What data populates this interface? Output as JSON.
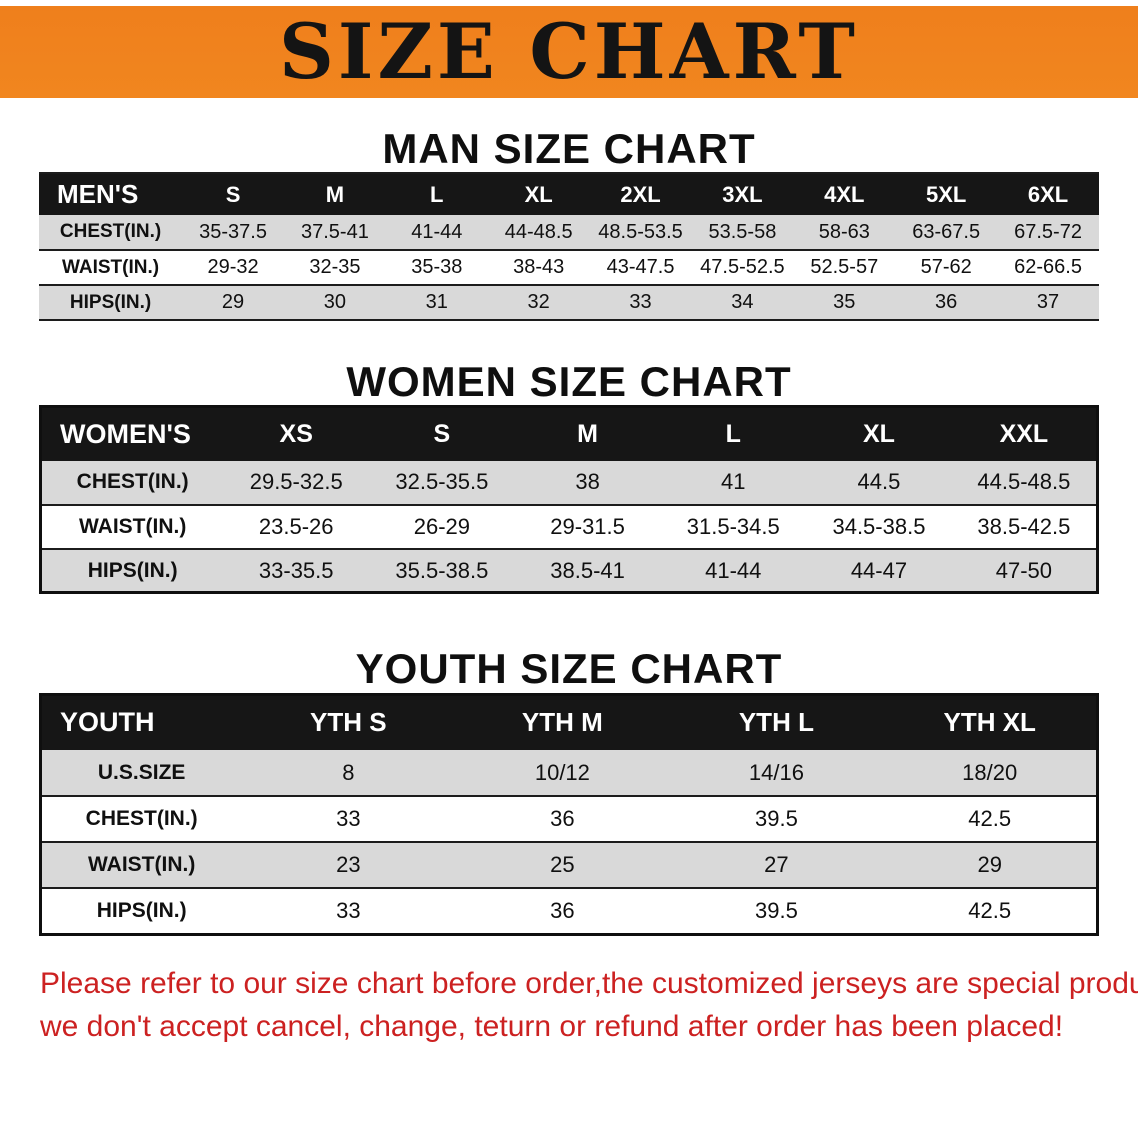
{
  "banner": {
    "title": "SIZE CHART"
  },
  "colors": {
    "banner_orange": "#F0821E",
    "header_black": "#161616",
    "row_gray": "#D9D9D9",
    "note_red": "#CC2121"
  },
  "footnote": {
    "line1": "Please refer to our size chart before order,the customized jerseys are special products,",
    "line2": "we don't accept cancel, change, teturn or refund after order has been placed!"
  },
  "chart_data": [
    {
      "type": "table",
      "title": "MAN SIZE CHART",
      "columns": [
        "MEN'S",
        "S",
        "M",
        "L",
        "XL",
        "2XL",
        "3XL",
        "4XL",
        "5XL",
        "6XL"
      ],
      "rows": [
        [
          "CHEST(IN.)",
          "35-37.5",
          "37.5-41",
          "41-44",
          "44-48.5",
          "48.5-53.5",
          "53.5-58",
          "58-63",
          "63-67.5",
          "67.5-72"
        ],
        [
          "WAIST(IN.)",
          "29-32",
          "32-35",
          "35-38",
          "38-43",
          "43-47.5",
          "47.5-52.5",
          "52.5-57",
          "57-62",
          "62-66.5"
        ],
        [
          "HIPS(IN.)",
          "29",
          "30",
          "31",
          "32",
          "33",
          "34",
          "35",
          "36",
          "37"
        ]
      ]
    },
    {
      "type": "table",
      "title": "WOMEN SIZE CHART",
      "columns": [
        "WOMEN'S",
        "XS",
        "S",
        "M",
        "L",
        "XL",
        "XXL"
      ],
      "rows": [
        [
          "CHEST(IN.)",
          "29.5-32.5",
          "32.5-35.5",
          "38",
          "41",
          "44.5",
          "44.5-48.5"
        ],
        [
          "WAIST(IN.)",
          "23.5-26",
          "26-29",
          "29-31.5",
          "31.5-34.5",
          "34.5-38.5",
          "38.5-42.5"
        ],
        [
          "HIPS(IN.)",
          "33-35.5",
          "35.5-38.5",
          "38.5-41",
          "41-44",
          "44-47",
          "47-50"
        ]
      ]
    },
    {
      "type": "table",
      "title": "YOUTH SIZE CHART",
      "columns": [
        "YOUTH",
        "YTH S",
        "YTH M",
        "YTH L",
        "YTH XL"
      ],
      "rows": [
        [
          "U.S.SIZE",
          "8",
          "10/12",
          "14/16",
          "18/20"
        ],
        [
          "CHEST(IN.)",
          "33",
          "36",
          "39.5",
          "42.5"
        ],
        [
          "WAIST(IN.)",
          "23",
          "25",
          "27",
          "29"
        ],
        [
          "HIPS(IN.)",
          "33",
          "36",
          "39.5",
          "42.5"
        ]
      ]
    }
  ]
}
